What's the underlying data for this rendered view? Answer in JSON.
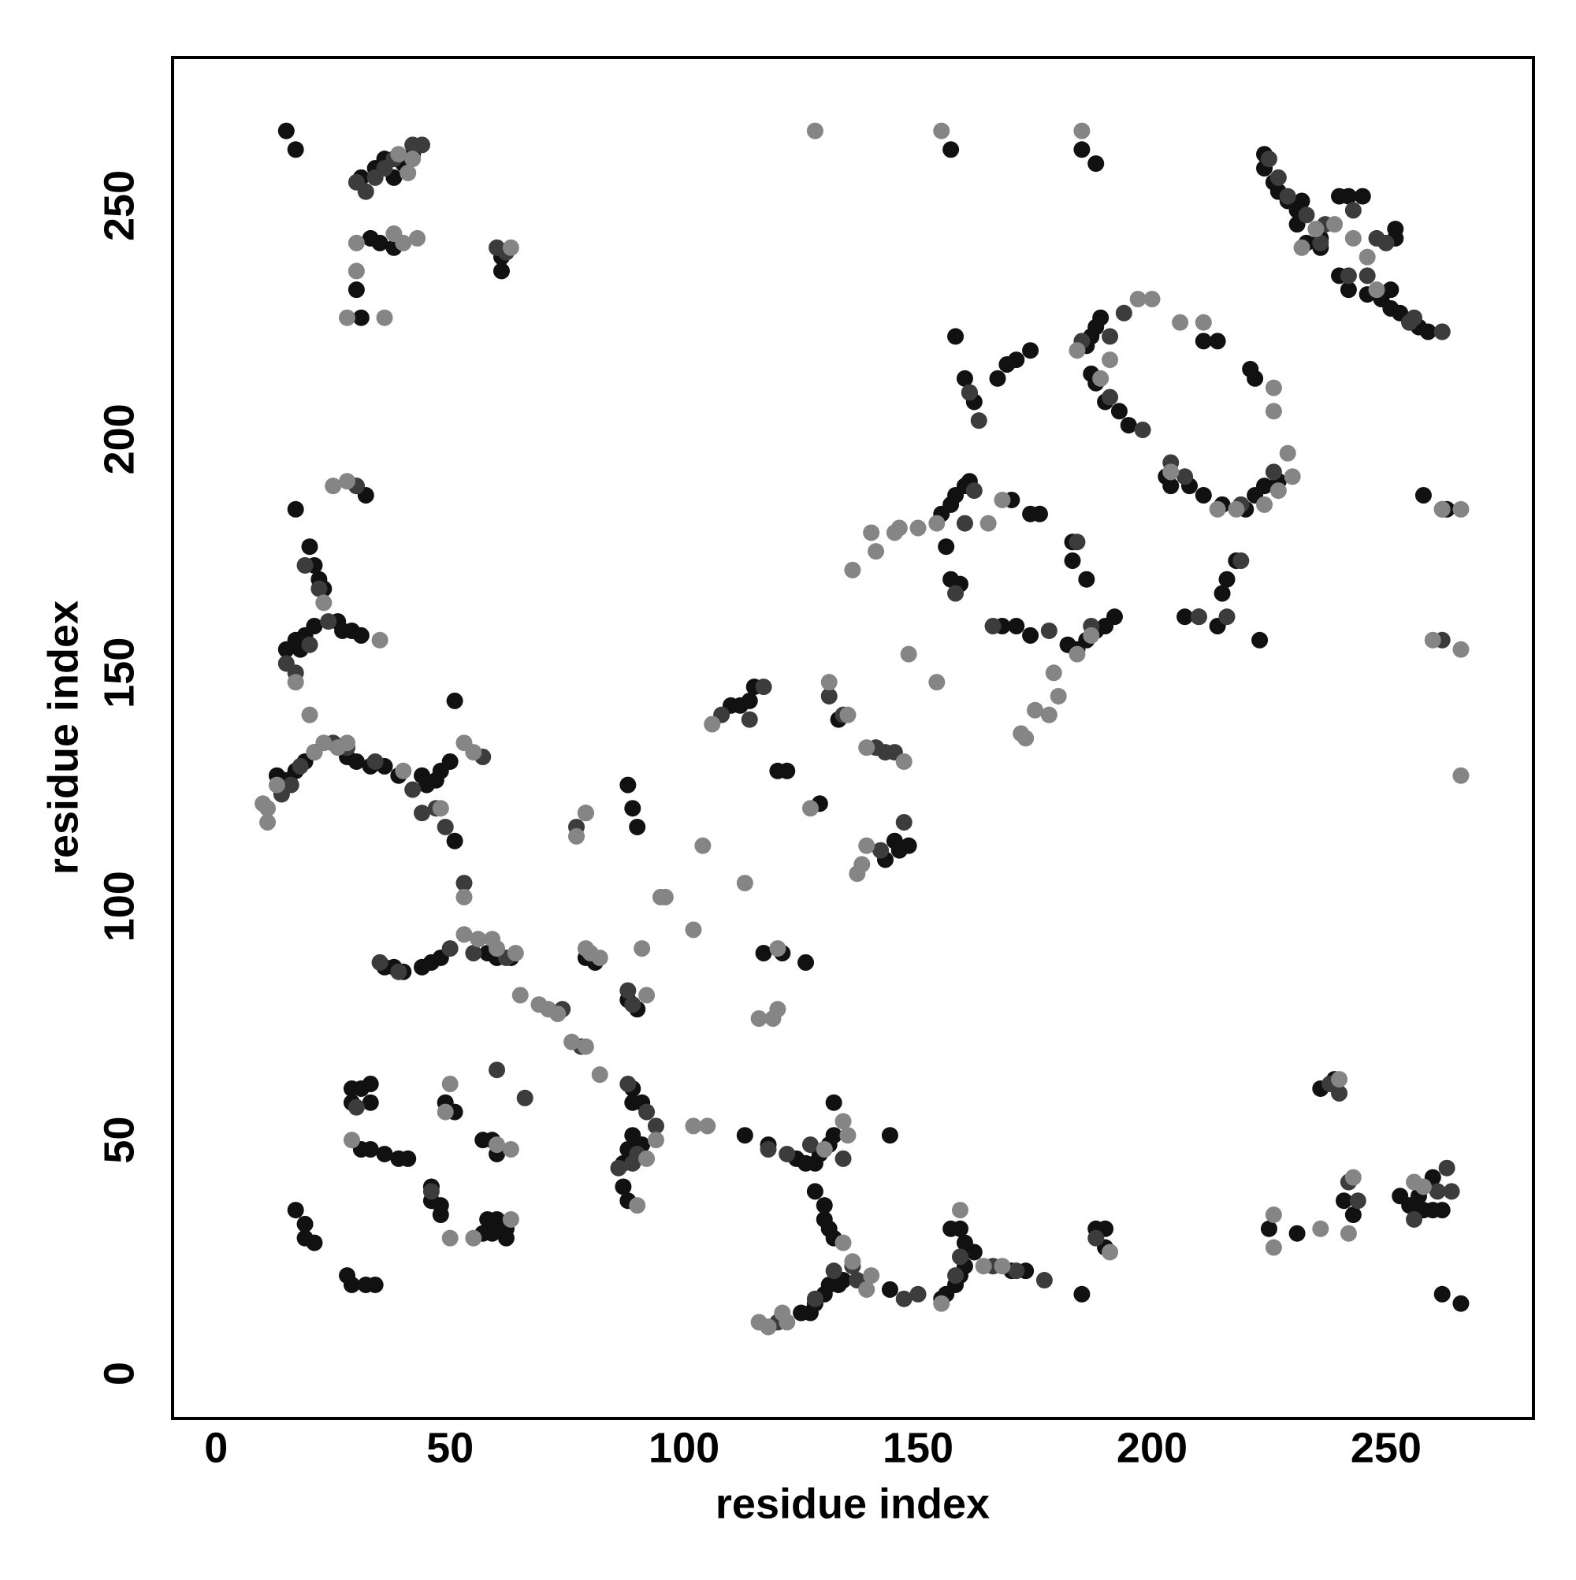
{
  "chart_data": {
    "type": "scatter",
    "x_label": "residue index",
    "y_label": "residue index",
    "xlim": [
      -9.3,
      281.5
    ],
    "ylim": [
      -9.6,
      281.7
    ],
    "xticks": [
      0,
      50,
      100,
      150,
      200,
      250
    ],
    "yticks": [
      0,
      50,
      100,
      150,
      200,
      250
    ],
    "grid": false,
    "series": [
      {
        "color": "#111111",
        "x": [
          15,
          17,
          31,
          34,
          36,
          38,
          40,
          42,
          33,
          35,
          38,
          30,
          31,
          61,
          61,
          224,
          224,
          226,
          227,
          229,
          231,
          232,
          231,
          233,
          236,
          236,
          240,
          242,
          245,
          252,
          252,
          240,
          242,
          246,
          249,
          251,
          251,
          253,
          255,
          257,
          259,
          262,
          258,
          263,
          186,
          187,
          188,
          189,
          187,
          188,
          190,
          193,
          195,
          188,
          185,
          157,
          158,
          160,
          161,
          162,
          167,
          169,
          171,
          174,
          221,
          222,
          211,
          214,
          203,
          204,
          208,
          211,
          215,
          220,
          222,
          224,
          227,
          155,
          157,
          158,
          160,
          161,
          156,
          157,
          159,
          170,
          174,
          176,
          168,
          171,
          174,
          183,
          183,
          186,
          182,
          184,
          186,
          188,
          190,
          192,
          207,
          210,
          214,
          215,
          216,
          218,
          223,
          30,
          32,
          17,
          20,
          21,
          22,
          23,
          15,
          17,
          18,
          19,
          21,
          26,
          27,
          29,
          31,
          13,
          15,
          17,
          19,
          21,
          28,
          30,
          33,
          36,
          39,
          44,
          45,
          47,
          48,
          50,
          51,
          51,
          88,
          89,
          90,
          110,
          112,
          114,
          115,
          120,
          122,
          129,
          133,
          143,
          145,
          146,
          148,
          36,
          38,
          40,
          44,
          46,
          48,
          58,
          60,
          63,
          117,
          121,
          126,
          79,
          81,
          88,
          90,
          29,
          31,
          33,
          33,
          29,
          31,
          33,
          36,
          39,
          41,
          46,
          46,
          48,
          48,
          49,
          51,
          57,
          59,
          60,
          58,
          60,
          62,
          62,
          57,
          59,
          17,
          19,
          19,
          21,
          28,
          29,
          32,
          34,
          87,
          88,
          87,
          88,
          89,
          91,
          89,
          91,
          89,
          113,
          118,
          124,
          126,
          128,
          129,
          131,
          132,
          132,
          128,
          130,
          130,
          131,
          132,
          125,
          127,
          128,
          130,
          131,
          133,
          134,
          144,
          144,
          155,
          156,
          158,
          159,
          160,
          157,
          159,
          160,
          162,
          170,
          173,
          185,
          188,
          190,
          190,
          225,
          231,
          236,
          239,
          241,
          243,
          253,
          255,
          257,
          258,
          260,
          260,
          262,
          262,
          266
        ],
        "y": [
          266,
          262,
          256,
          258,
          260,
          256,
          259,
          261,
          243,
          242,
          241,
          232,
          226,
          236,
          239,
          261,
          258,
          255,
          253,
          251,
          249,
          251,
          246,
          242,
          243,
          241,
          252,
          252,
          252,
          245,
          243,
          235,
          232,
          231,
          230,
          232,
          228,
          227,
          225,
          224,
          223,
          223,
          188,
          185,
          220,
          222,
          224,
          226,
          214,
          212,
          208,
          206,
          203,
          259,
          262,
          262,
          222,
          213,
          210,
          208,
          213,
          216,
          217,
          219,
          215,
          213,
          221,
          221,
          192,
          190,
          190,
          188,
          186,
          185,
          188,
          190,
          191,
          184,
          186,
          188,
          190,
          191,
          177,
          170,
          169,
          187,
          184,
          184,
          160,
          160,
          158,
          178,
          174,
          170,
          156,
          155,
          157,
          159,
          160,
          162,
          162,
          162,
          160,
          167,
          170,
          174,
          157,
          190,
          188,
          185,
          177,
          173,
          170,
          168,
          155,
          157,
          155,
          158,
          160,
          161,
          159,
          159,
          158,
          128,
          127,
          129,
          131,
          133,
          132,
          131,
          130,
          130,
          128,
          128,
          126,
          127,
          129,
          131,
          144,
          114,
          126,
          121,
          117,
          143,
          143,
          144,
          147,
          129,
          129,
          122,
          140,
          110,
          114,
          112,
          113,
          87,
          87,
          86,
          87,
          88,
          89,
          90,
          89,
          89,
          90,
          90,
          88,
          89,
          88,
          80,
          78,
          61,
          61,
          62,
          58,
          58,
          48,
          48,
          47,
          46,
          46,
          40,
          37,
          36,
          34,
          58,
          56,
          50,
          50,
          47,
          33,
          33,
          31,
          29,
          30,
          30,
          35,
          32,
          29,
          28,
          21,
          19,
          19,
          19,
          40,
          37,
          45,
          48,
          51,
          49,
          58,
          58,
          61,
          51,
          49,
          46,
          45,
          45,
          47,
          49,
          51,
          58,
          39,
          36,
          33,
          31,
          29,
          13,
          13,
          15,
          17,
          19,
          19,
          20,
          51,
          18,
          16,
          17,
          19,
          21,
          23,
          31,
          31,
          28,
          26,
          22,
          22,
          17,
          31,
          31,
          27,
          31,
          30,
          61,
          63,
          37,
          34,
          38,
          36,
          38,
          35,
          35,
          42,
          35,
          17,
          15
        ]
      },
      {
        "color": "#3c3c3c",
        "x": [
          30,
          32,
          34,
          36,
          38,
          42,
          44,
          60,
          62,
          225,
          227,
          229,
          233,
          237,
          243,
          248,
          250,
          256,
          262,
          163,
          161,
          185,
          191,
          194,
          191,
          198,
          204,
          207,
          219,
          226,
          236,
          242,
          246,
          255,
          160,
          162,
          158,
          166,
          178,
          184,
          187,
          210,
          216,
          219,
          19,
          22,
          24,
          15,
          17,
          20,
          14,
          16,
          18,
          25,
          30,
          28,
          34,
          42,
          44,
          47,
          49,
          53,
          57,
          108,
          114,
          117,
          131,
          134,
          141,
          143,
          145,
          147,
          142,
          35,
          39,
          50,
          55,
          62,
          77,
          79,
          74,
          78,
          88,
          89,
          92,
          94,
          88,
          30,
          46,
          60,
          66,
          86,
          90,
          89,
          118,
          122,
          127,
          134,
          128,
          132,
          136,
          120,
          118,
          137,
          147,
          150,
          158,
          159,
          166,
          171,
          177,
          188,
          242,
          244,
          238,
          240,
          256,
          261,
          263,
          264,
          262,
          262
        ],
        "y": [
          255,
          253,
          256,
          258,
          260,
          263,
          263,
          241,
          240,
          260,
          256,
          252,
          248,
          246,
          249,
          243,
          242,
          226,
          223,
          204,
          210,
          221,
          222,
          227,
          209,
          202,
          195,
          192,
          186,
          193,
          242,
          235,
          235,
          225,
          182,
          189,
          167,
          160,
          159,
          178,
          160,
          162,
          162,
          174,
          173,
          168,
          161,
          152,
          150,
          156,
          124,
          126,
          130,
          135,
          190,
          134,
          131,
          125,
          120,
          121,
          117,
          105,
          132,
          141,
          140,
          147,
          145,
          141,
          134,
          133,
          133,
          118,
          112,
          88,
          86,
          91,
          90,
          89,
          117,
          120,
          78,
          70,
          82,
          79,
          56,
          53,
          62,
          57,
          39,
          65,
          59,
          44,
          47,
          45,
          48,
          47,
          49,
          46,
          16,
          22,
          23,
          11,
          10,
          20,
          16,
          17,
          21,
          25,
          23,
          22,
          20,
          29,
          41,
          37,
          62,
          60,
          33,
          39,
          44,
          39,
          157,
          185
        ]
      },
      {
        "color": "#858585",
        "x": [
          25,
          28,
          26,
          28,
          23,
          21,
          13,
          11,
          11,
          17,
          20,
          23,
          35,
          10,
          40,
          53,
          55,
          53,
          48,
          77,
          79,
          82,
          76,
          71,
          65,
          53,
          56,
          59,
          60,
          64,
          60,
          63,
          55,
          50,
          50,
          29,
          38,
          40,
          43,
          28,
          36,
          30,
          30,
          41,
          42,
          39,
          63,
          128,
          155,
          185,
          197,
          206,
          211,
          226,
          226,
          229,
          230,
          224,
          227,
          204,
          214,
          218,
          262,
          266,
          266,
          266,
          260,
          248,
          243,
          246,
          235,
          232,
          239,
          200,
          184,
          191,
          189,
          184,
          187,
          180,
          179,
          178,
          173,
          172,
          175,
          165,
          168,
          148,
          154,
          140,
          146,
          150,
          154,
          136,
          141,
          145,
          147,
          139,
          137,
          138,
          139,
          127,
          131,
          135,
          106,
          113,
          104,
          102,
          96,
          95,
          79,
          80,
          82,
          92,
          91,
          79,
          69,
          73,
          102,
          105,
          94,
          92,
          90,
          116,
          119,
          120,
          139,
          140,
          136,
          134,
          121,
          118,
          122,
          116,
          155,
          159,
          164,
          168,
          191,
          226,
          226,
          236,
          242,
          243,
          240,
          256,
          258,
          120,
          130,
          134,
          135,
          63,
          49
        ],
        "y": [
          190,
          191,
          134,
          135,
          135,
          133,
          126,
          121,
          118,
          148,
          141,
          165,
          157,
          122,
          129,
          135,
          133,
          102,
          121,
          115,
          120,
          64,
          71,
          78,
          81,
          94,
          93,
          93,
          91,
          90,
          49,
          48,
          29,
          29,
          62,
          50,
          244,
          242,
          243,
          226,
          226,
          236,
          242,
          257,
          260,
          261,
          241,
          266,
          266,
          266,
          230,
          225,
          225,
          211,
          206,
          197,
          192,
          186,
          189,
          193,
          185,
          185,
          185,
          185,
          155,
          128,
          157,
          232,
          243,
          239,
          245,
          241,
          246,
          230,
          219,
          217,
          213,
          154,
          158,
          145,
          150,
          141,
          136,
          137,
          142,
          182,
          187,
          154,
          148,
          180,
          181,
          181,
          182,
          172,
          176,
          180,
          131,
          134,
          107,
          109,
          113,
          121,
          148,
          141,
          139,
          105,
          113,
          95,
          102,
          102,
          70,
          90,
          89,
          81,
          91,
          91,
          79,
          77,
          53,
          53,
          50,
          46,
          36,
          76,
          76,
          78,
          18,
          21,
          24,
          28,
          13,
          10,
          11,
          11,
          15,
          35,
          23,
          23,
          26,
          27,
          34,
          31,
          30,
          42,
          63,
          41,
          40,
          91,
          48,
          54,
          51,
          33,
          56
        ]
      }
    ]
  }
}
